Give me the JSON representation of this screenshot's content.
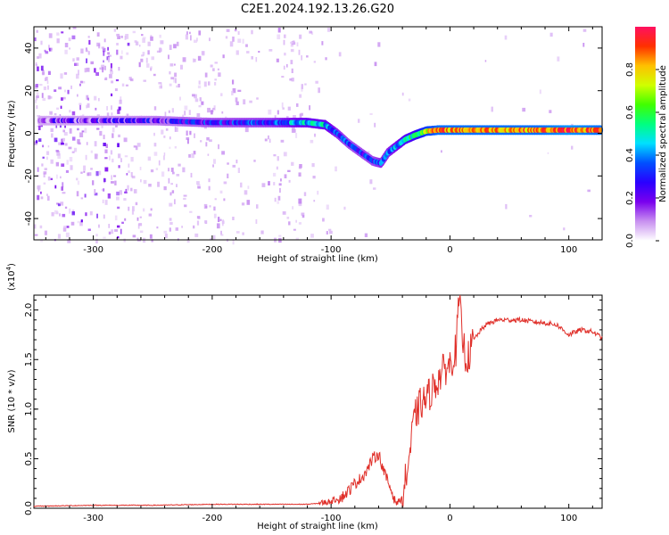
{
  "title": "C2E1.2024.192.13.26.G20",
  "chart_data": [
    {
      "type": "heatmap",
      "xlabel": "Height of straight line (km)",
      "ylabel": "Frequency (Hz)",
      "xlim": [
        -350,
        128
      ],
      "ylim": [
        -50,
        50
      ],
      "xticks": [
        -300,
        -200,
        -100,
        0,
        100
      ],
      "yticks": [
        -40,
        -20,
        0,
        20,
        40
      ],
      "colorbar": {
        "label": "Normalized spectral amplitude",
        "range": [
          0,
          1
        ],
        "ticks": [
          "0.0",
          "0.2",
          "0.4",
          "0.6",
          "0.8"
        ],
        "tick_values": [
          0,
          0.2,
          0.4,
          0.6,
          0.8
        ],
        "colormap": [
          "#ffffff",
          "#c890f0",
          "#7a00ee",
          "#2a00ff",
          "#0050ff",
          "#00e0ff",
          "#00ff80",
          "#40ff00",
          "#d0ff00",
          "#ffc000",
          "#ff3000",
          "#ff1060"
        ]
      },
      "ridge": {
        "x": [
          -350,
          -300,
          -250,
          -200,
          -150,
          -120,
          -105,
          -95,
          -85,
          -75,
          -65,
          -58,
          -52,
          -45,
          -38,
          -30,
          -20,
          -10,
          0,
          25,
          50,
          75,
          100,
          128
        ],
        "y": [
          6,
          6,
          6,
          5,
          5,
          5,
          4,
          0,
          -5,
          -9,
          -13,
          -14,
          -9,
          -6,
          -3,
          -1,
          1,
          1.5,
          1.5,
          1.5,
          1.5,
          1.5,
          1.5,
          1.5
        ],
        "amplitude": [
          0.15,
          0.18,
          0.22,
          0.28,
          0.32,
          0.45,
          0.45,
          0.35,
          0.3,
          0.3,
          0.3,
          0.35,
          0.35,
          0.4,
          0.5,
          0.55,
          0.75,
          0.85,
          0.85,
          0.85,
          0.85,
          0.85,
          0.9,
          0.85
        ]
      }
    },
    {
      "type": "line",
      "xlabel": "Height of straight line (km)",
      "ylabel": "SNR (10 * v/v)",
      "y_multiplier": "(x10",
      "y_multiplier_exp": "4",
      "xlim": [
        -350,
        128
      ],
      "ylim": [
        0,
        2.15
      ],
      "xticks": [
        -300,
        -200,
        -100,
        0,
        100
      ],
      "yticks": [
        "0.0",
        "0.5",
        "1.0",
        "1.5",
        "2.0"
      ],
      "ytick_values": [
        0,
        0.5,
        1.0,
        1.5,
        2.0
      ],
      "series": [
        {
          "color": "#e0302a",
          "x": [
            -350,
            -300,
            -250,
            -200,
            -150,
            -120,
            -110,
            -100,
            -90,
            -85,
            -80,
            -75,
            -70,
            -65,
            -60,
            -55,
            -50,
            -45,
            -40,
            -35,
            -30,
            -25,
            -20,
            -15,
            -10,
            -5,
            0,
            5,
            8,
            10,
            13,
            15,
            20,
            25,
            30,
            40,
            50,
            60,
            70,
            80,
            90,
            95,
            100,
            110,
            120,
            128
          ],
          "y": [
            0.02,
            0.03,
            0.03,
            0.04,
            0.04,
            0.04,
            0.05,
            0.07,
            0.12,
            0.18,
            0.25,
            0.3,
            0.38,
            0.5,
            0.55,
            0.35,
            0.2,
            0.05,
            0.1,
            0.45,
            0.9,
            1.05,
            1.1,
            1.2,
            1.3,
            1.4,
            1.45,
            1.6,
            2.15,
            1.75,
            1.55,
            1.5,
            1.7,
            1.78,
            1.85,
            1.9,
            1.9,
            1.9,
            1.88,
            1.87,
            1.85,
            1.8,
            1.75,
            1.8,
            1.78,
            1.72
          ]
        }
      ]
    }
  ]
}
